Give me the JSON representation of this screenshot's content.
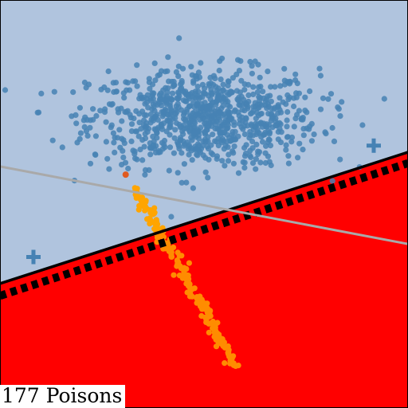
{
  "caption": "177 Poisons",
  "colors": {
    "region_upper": "#b0c4de",
    "region_lower": "#ff0000",
    "clean_points": "#4682b4",
    "poison_points": "#ff8c00",
    "poison_light": "#ffa500",
    "highlight_point": "#e05a20",
    "boundary": "#000000",
    "secondary_line": "#a9a9a9",
    "plus_marker": "#4682b4"
  },
  "chart_data": {
    "type": "scatter",
    "title": "",
    "xlabel": "",
    "ylabel": "",
    "xlim": [
      0,
      1
    ],
    "ylim": [
      0,
      1
    ],
    "grid": false,
    "legend": "none",
    "clean_cluster": {
      "center": [
        0.5,
        0.71
      ],
      "spread": [
        0.14,
        0.06
      ],
      "count": 900
    },
    "poison_cluster": {
      "start": [
        0.33,
        0.54
      ],
      "end": [
        0.58,
        0.1
      ],
      "count": 177
    },
    "highlight_point": [
      0.308,
      0.572
    ],
    "plus_markers": [
      [
        0.082,
        0.37
      ],
      [
        0.916,
        0.643
      ]
    ],
    "decision_boundary": {
      "x": [
        0,
        1
      ],
      "y": [
        0.305,
        0.627
      ]
    },
    "margin_line": {
      "x": [
        0,
        1
      ],
      "y": [
        0.275,
        0.6
      ],
      "style": "dotted-thick"
    },
    "secondary_line": {
      "x": [
        0,
        1
      ],
      "y": [
        0.592,
        0.402
      ]
    }
  }
}
